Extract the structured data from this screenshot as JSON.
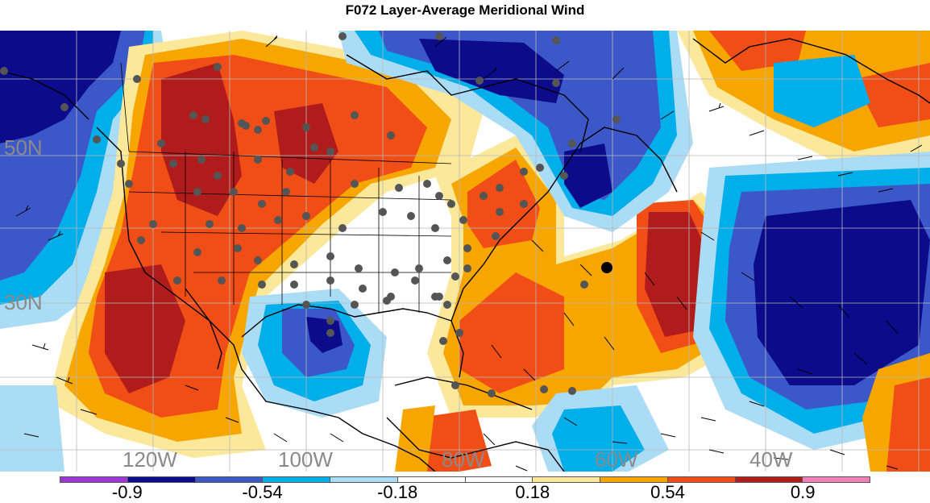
{
  "title": "F072 Layer-Average Meridional Wind",
  "lon_labels": [
    "120W",
    "100W",
    "80W",
    "60W",
    "40W"
  ],
  "lat_labels": [
    "50N",
    "30N"
  ],
  "colorbar": {
    "colors": [
      "#9c38d8",
      "#0b0b8c",
      "#3c58c8",
      "#00aeea",
      "#abdcf5",
      "#ffffff",
      "#ffffff",
      "#fbe89a",
      "#f7a600",
      "#f04e16",
      "#b01c1c",
      "#f180b8"
    ],
    "labels": [
      "-0.9",
      "-0.54",
      "-0.18",
      "0.18",
      "0.54",
      "0.9"
    ]
  },
  "colors": {
    "land_dark_red": "#b01c1c",
    "land_red": "#f04e16",
    "orange": "#f7a600",
    "light_yellow": "#fbe89a",
    "light_blue": "#abdcf5",
    "cyan": "#00aeea",
    "blue": "#3c58c8",
    "navy": "#0b0b8c",
    "station_dot": "#555555"
  }
}
